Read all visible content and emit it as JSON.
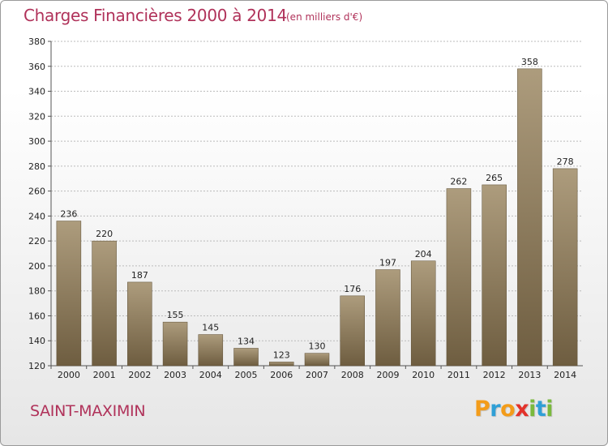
{
  "header": {
    "title": "Charges Financières 2000 à 2014",
    "subtitle": "(en milliers d'€)"
  },
  "footer": {
    "commune": "SAINT-MAXIMIN",
    "logo": "Proxiti",
    "logo_letters": [
      {
        "ch": "P",
        "color": "#f39c1a"
      },
      {
        "ch": "r",
        "color": "#2f9fd6"
      },
      {
        "ch": "o",
        "color": "#f39c1a"
      },
      {
        "ch": "x",
        "color": "#e3322b"
      },
      {
        "ch": "i",
        "color": "#7ab93d"
      },
      {
        "ch": "t",
        "color": "#2f9fd6"
      },
      {
        "ch": "i",
        "color": "#7ab93d"
      }
    ]
  },
  "colors": {
    "accent_text": "#b0325a",
    "bar_light": "#ad9c7d",
    "bar_dark": "#6e5d40",
    "grid": "#bbbbbb"
  },
  "chart_data": {
    "type": "bar",
    "title": "Charges Financières 2000 à 2014",
    "subtitle": "(en milliers d'€)",
    "categories": [
      "2000",
      "2001",
      "2002",
      "2003",
      "2004",
      "2005",
      "2006",
      "2007",
      "2008",
      "2009",
      "2010",
      "2011",
      "2012",
      "2013",
      "2014"
    ],
    "values": [
      236,
      220,
      187,
      155,
      145,
      134,
      123,
      130,
      176,
      197,
      204,
      262,
      265,
      358,
      278
    ],
    "ylim": [
      120,
      380
    ],
    "yticks": [
      120,
      140,
      160,
      180,
      200,
      220,
      240,
      260,
      280,
      300,
      320,
      340,
      360,
      380
    ],
    "grid": true,
    "data_labels": true
  }
}
